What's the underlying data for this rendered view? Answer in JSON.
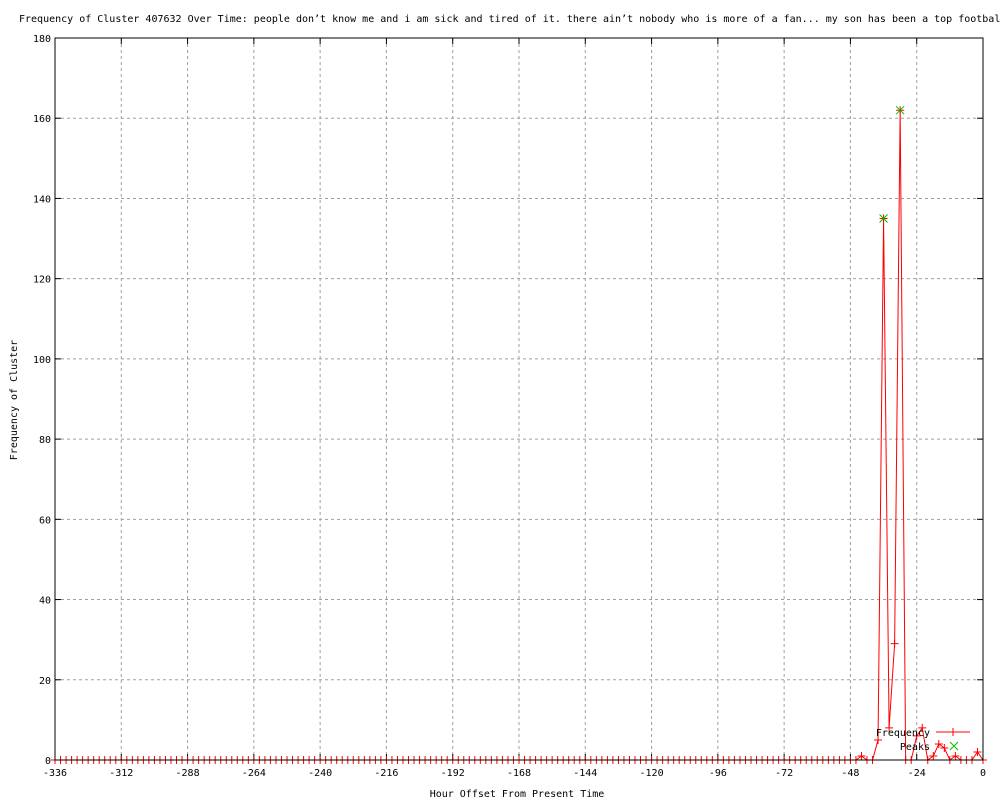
{
  "chart_data": {
    "type": "line",
    "title": "Frequency of Cluster 407632 Over Time: people don’t know me and i am sick and tired of it. there ain’t nobody who is more of a fan... my son has been a top football",
    "xlabel": "Hour Offset From Present Time",
    "ylabel": "Frequency of Cluster",
    "xlim": [
      -336,
      0
    ],
    "ylim": [
      0,
      180
    ],
    "xticks": [
      -336,
      -312,
      -288,
      -264,
      -240,
      -216,
      -192,
      -168,
      -144,
      -120,
      -96,
      -72,
      -48,
      -24,
      0
    ],
    "yticks": [
      0,
      20,
      40,
      60,
      80,
      100,
      120,
      140,
      160,
      180
    ],
    "grid": true,
    "legend_position": "bottom-right",
    "series": [
      {
        "name": "Frequency",
        "color": "#ff0000",
        "marker": "plus",
        "baseline_zero_from": -336,
        "baseline_zero_to": -46,
        "baseline_step": 2,
        "x": [
          -44,
          -42,
          -40,
          -38,
          -36,
          -34,
          -32,
          -30,
          -28,
          -26,
          -24,
          -22,
          -20,
          -18,
          -16,
          -14,
          -12,
          -10,
          -8,
          -6,
          -4,
          -2,
          0
        ],
        "y": [
          1,
          0,
          0,
          5,
          135,
          8,
          29,
          162,
          0,
          0,
          6,
          8,
          0,
          1,
          4,
          3,
          0,
          1,
          0,
          0,
          0,
          2,
          0
        ]
      },
      {
        "name": "Peaks",
        "color": "#00c000",
        "marker": "cross",
        "x": [
          -36,
          -30
        ],
        "y": [
          135,
          162
        ]
      }
    ]
  }
}
